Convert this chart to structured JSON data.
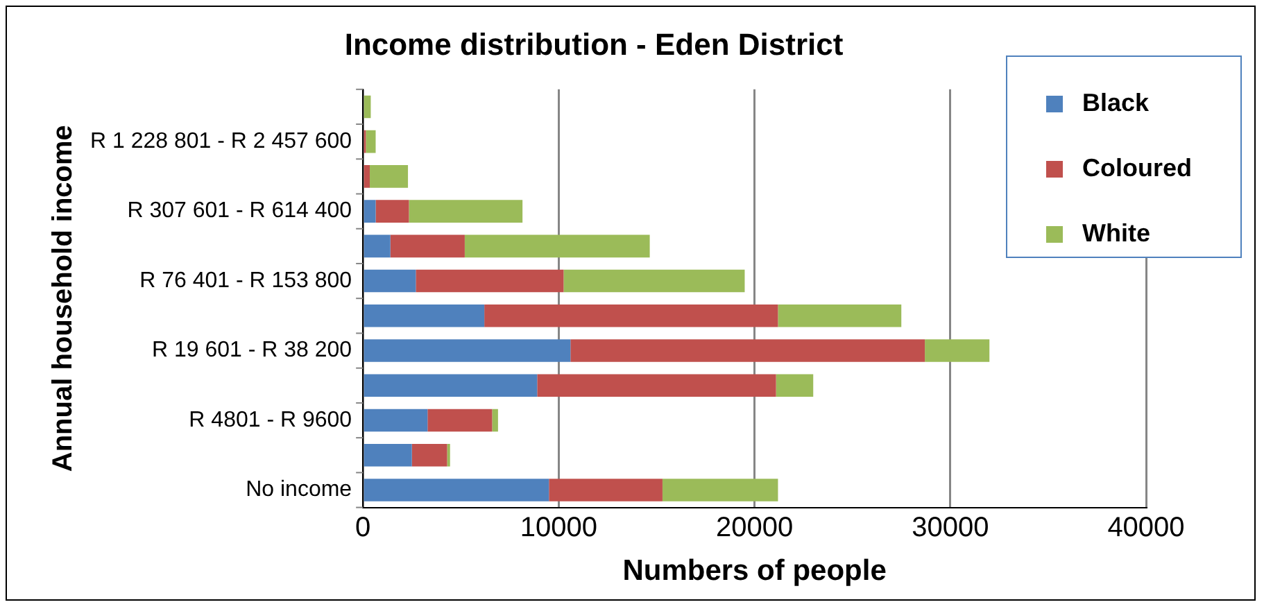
{
  "chart_data": {
    "type": "bar",
    "orientation": "horizontal",
    "stacked": true,
    "title": "Income distribution - Eden District",
    "xlabel": "Numbers of people",
    "ylabel": "Annual household income",
    "categories": [
      null,
      "R 1 228 801 - R 2 457 600",
      null,
      "R 307 601 - R 614 400",
      null,
      "R 76 401 - R 153 800",
      null,
      "R 19 601 - R 38 200",
      null,
      "R 4801 - R 9600",
      null,
      "No income"
    ],
    "series": [
      {
        "name": "Black",
        "color": "#4f81bd",
        "values": [
          0,
          null,
          null,
          650,
          1400,
          2700,
          6200,
          10600,
          8900,
          3300,
          2500,
          9500
        ]
      },
      {
        "name": "Coloured",
        "color": "#c0504d",
        "values": [
          null,
          150,
          350,
          1700,
          3800,
          7550,
          15000,
          18100,
          12200,
          3300,
          1800,
          5800
        ]
      },
      {
        "name": "White",
        "color": "#9bbb59",
        "values": [
          400,
          500,
          1950,
          5800,
          9450,
          9250,
          6300,
          3300,
          1900,
          300,
          150,
          5900
        ]
      }
    ],
    "xlim": [
      0,
      40000
    ],
    "xticks": [
      0,
      10000,
      20000,
      30000,
      40000
    ],
    "grid": "x",
    "legend": "top right"
  }
}
